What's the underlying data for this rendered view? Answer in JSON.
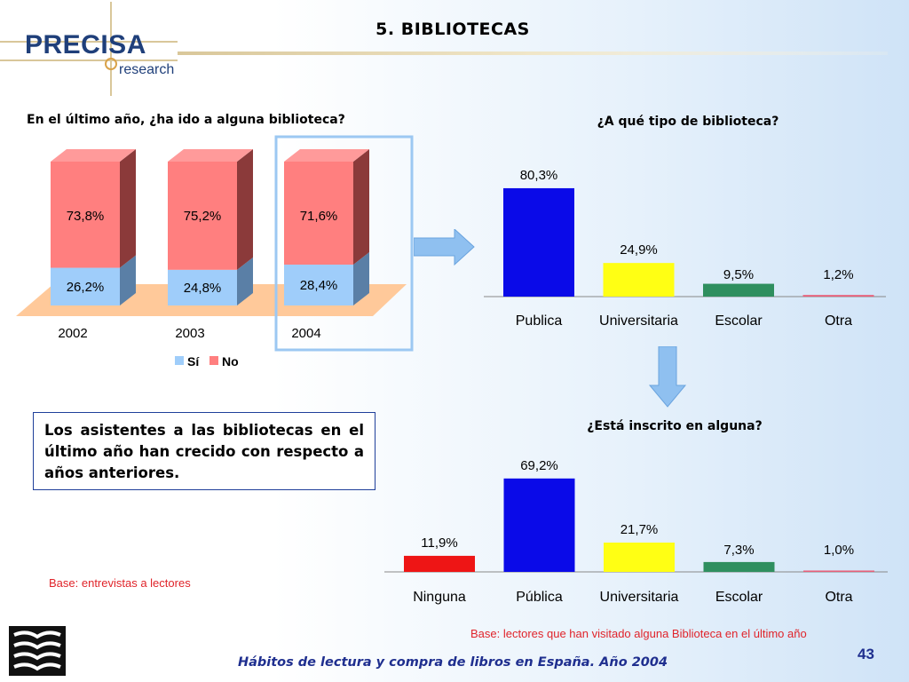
{
  "header": {
    "title": "5. BIBLIOTECAS",
    "logo_text": "PRECISA",
    "logo_sub": "research"
  },
  "colors": {
    "si": "#9fcdfa",
    "no": "#ff7f7f",
    "bar_publica": "#0a0ae8",
    "bar_universitaria": "#ffff14",
    "bar_escolar": "#2f8f5f",
    "bar_otra": "#e8607a",
    "bar_ninguna": "#ee1515",
    "accent": "#1f2f8f"
  },
  "chart_data": [
    {
      "type": "bar",
      "stacked": true,
      "three_d": true,
      "title": "En el último año, ¿ha ido a alguna biblioteca?",
      "categories": [
        "2002",
        "2003",
        "2004"
      ],
      "series": [
        {
          "name": "Sí",
          "values": [
            26.2,
            24.8,
            28.4
          ],
          "labels": [
            "26,2%",
            "24,8%",
            "28,4%"
          ]
        },
        {
          "name": "No",
          "values": [
            73.8,
            75.2,
            71.6
          ],
          "labels": [
            "73,8%",
            "75,2%",
            "71,6%"
          ]
        }
      ],
      "ylim": [
        0,
        100
      ],
      "legend": "bottom",
      "highlighted_category": "2004"
    },
    {
      "type": "bar",
      "title": "¿A qué tipo de biblioteca?",
      "categories": [
        "Publica",
        "Universitaria",
        "Escolar",
        "Otra"
      ],
      "values": [
        80.3,
        24.9,
        9.5,
        1.2
      ],
      "labels": [
        "80,3%",
        "24,9%",
        "9,5%",
        "1,2%"
      ],
      "ylim": [
        0,
        100
      ]
    },
    {
      "type": "bar",
      "title": "¿Está inscrito en alguna?",
      "categories": [
        "Ninguna",
        "Pública",
        "Universitaria",
        "Escolar",
        "Otra"
      ],
      "values": [
        11.9,
        69.2,
        21.7,
        7.3,
        1.0
      ],
      "labels": [
        "11,9%",
        "69,2%",
        "21,7%",
        "7,3%",
        "1,0%"
      ],
      "ylim": [
        0,
        100
      ]
    }
  ],
  "note": "Los asistentes a las bibliotecas en el último año han crecido con respecto a años anteriores.",
  "base_left": "Base: entrevistas a lectores",
  "base_right": "Base: lectores que han visitado alguna Biblioteca en el último año",
  "footer": "Hábitos de lectura y compra de libros en España. Año 2004",
  "page_number": "43"
}
